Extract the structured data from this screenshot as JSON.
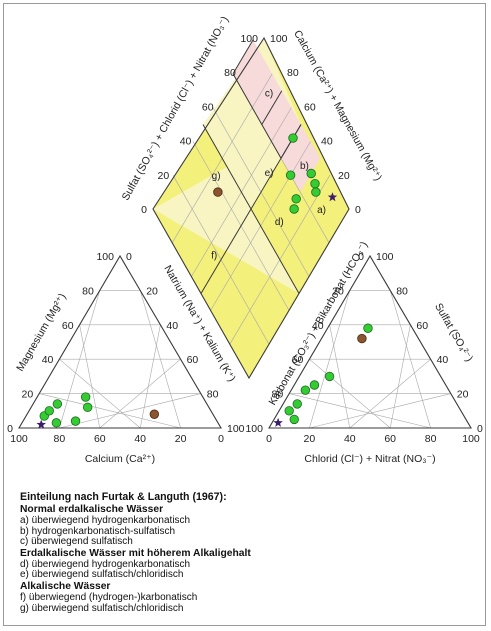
{
  "colors": {
    "line": "#3a3a3a",
    "grid": "#a8a8a8",
    "fill_sulfate_zone": "#f7dada",
    "fill_yellow": "#f3f07c",
    "fill_pale_yellow": "#f8f5c3",
    "sample_green": "#33cc33",
    "sample_brown": "#8a5530",
    "star": "#3b1d6b"
  },
  "ticks": [
    "0",
    "20",
    "40",
    "60",
    "80",
    "100"
  ],
  "diamond": {
    "upper_left_label": "Sulfat (SO₄²⁻) + Chlorid (Cl⁻) + Nitrat (NO₃⁻)",
    "upper_right_label": "Calcium (Ca²⁺) + Magnesium (Mg²⁺)",
    "lower_left_label": "Natrium (Na⁺) + Kalium (K⁺)",
    "lower_right_label": "Karbonat (CO₃²⁻) + Bikarbonat (HCO₃⁻)",
    "zones": [
      "a)",
      "b)",
      "c)",
      "d)",
      "e)",
      "f)",
      "g)"
    ]
  },
  "cation_triangle": {
    "left_label": "Magnesium (Mg²⁺)",
    "bottom_label": "Calcium (Ca²⁺)"
  },
  "anion_triangle": {
    "right_label": "Sulfat (SO₄²⁻)",
    "bottom_label": "Chlorid (Cl⁻) + Nitrat (NO₃⁻)"
  },
  "samples": [
    {
      "type": "green",
      "cation": {
        "ca": 84,
        "mg": 7
      },
      "anion": {
        "cl": 5,
        "so4": 10
      },
      "diamond": {
        "s": 30,
        "ca_mg": 91
      }
    },
    {
      "type": "green",
      "cation": {
        "ca": 80,
        "mg": 10
      },
      "anion": {
        "cl": 7,
        "so4": 14
      },
      "diamond": {
        "s": 25,
        "ca_mg": 90
      }
    },
    {
      "type": "green",
      "cation": {
        "ca": 74,
        "mg": 14
      },
      "anion": {
        "cl": 7,
        "so4": 22
      },
      "diamond": {
        "s": 22,
        "ca_mg": 88
      }
    },
    {
      "type": "green",
      "cation": {
        "ca": 60,
        "mg": 12
      },
      "anion": {
        "cl": 10,
        "so4": 25
      },
      "diamond": {
        "s": 28,
        "ca_mg": 72
      }
    },
    {
      "type": "green",
      "cation": {
        "ca": 58,
        "mg": 18
      },
      "anion": {
        "cl": 15,
        "so4": 30
      },
      "diamond": {
        "s": 30,
        "ca_mg": 76
      }
    },
    {
      "type": "green",
      "cation": {
        "ca": 80,
        "mg": 3
      },
      "anion": {
        "cl": 10,
        "so4": 5
      },
      "diamond": {
        "s": 50,
        "ca_mg": 92
      }
    },
    {
      "type": "green",
      "cation": {
        "ca": 70,
        "mg": 4
      },
      "anion": {
        "cl": 20,
        "so4": 58
      },
      "diamond": {
        "s": 40,
        "ca_mg": 80
      }
    },
    {
      "type": "brown",
      "cation": {
        "ca": 29,
        "mg": 8
      },
      "anion": {
        "cl": 20,
        "so4": 52
      },
      "diamond": {
        "s": 72,
        "ca_mg": 38
      }
    }
  ],
  "star": {
    "cation": {
      "ca": 88,
      "mg": 2
    },
    "anion": {
      "cl": 3,
      "so4": 3
    },
    "diamond": {
      "s": 12,
      "ca_mg": 95
    }
  },
  "legend": {
    "title": "Einteilung nach Furtak & Languth (1967):",
    "groups": [
      {
        "heading": "Normal erdalkalische Wässer",
        "items": [
          "a) überwiegend hydrogenkarbonatisch",
          "b) hydrogenkarbonatisch-sulfatisch",
          "c) überwiegend sulfatisch"
        ]
      },
      {
        "heading": "Erdalkalische Wässer mit höherem Alkaligehalt",
        "items": [
          "d) überwiegend hydrogenkarbonatisch",
          "e) überwiegend sulfatisch/chloridisch"
        ]
      },
      {
        "heading": "Alkalische Wässer",
        "items": [
          "f) überwiegend (hydrogen-)karbonatisch",
          "g) überwiegend sulfatisch/chloridisch"
        ]
      }
    ]
  }
}
